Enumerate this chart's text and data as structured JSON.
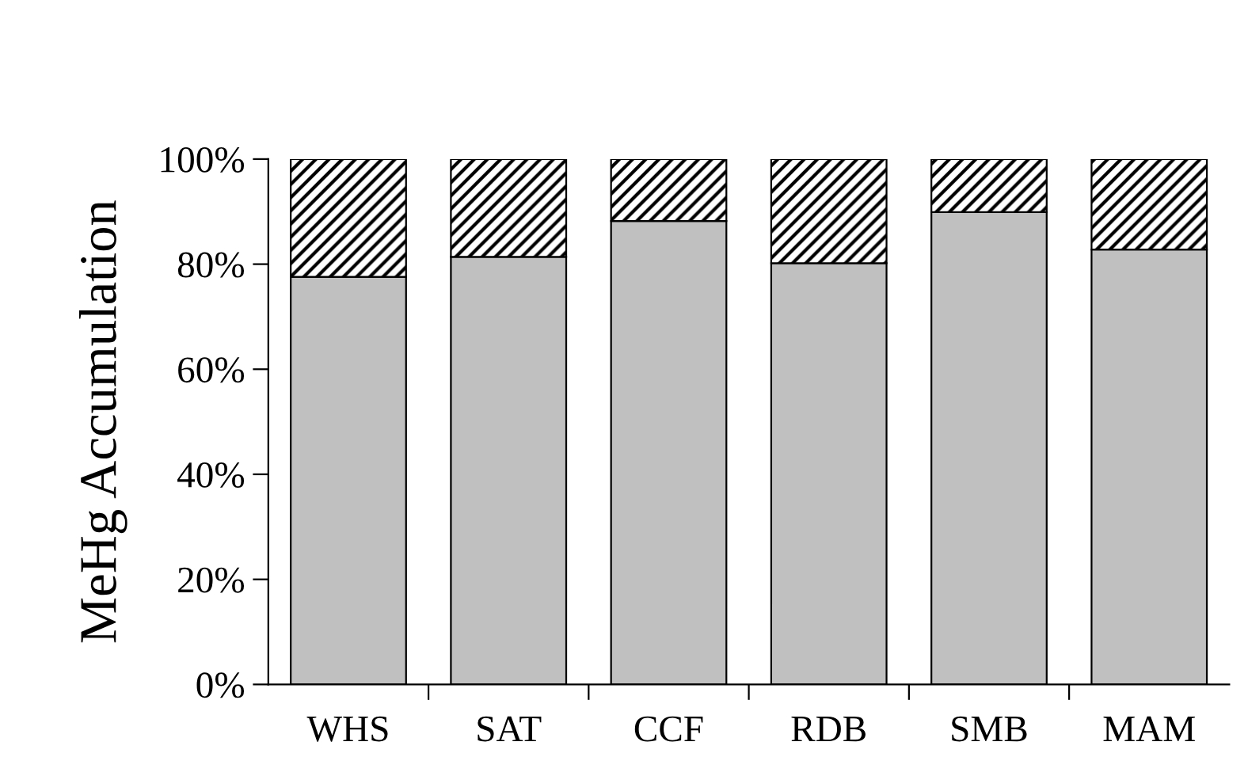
{
  "chart_data": {
    "type": "bar",
    "stacked": true,
    "ylabel": "MeHg Accumulation",
    "categories": [
      "WHS",
      "SAT",
      "CCF",
      "RDB",
      "SMB",
      "MAM"
    ],
    "series": [
      {
        "color": "#c0c0c0",
        "values": [
          77.6,
          81.4,
          88.2,
          80.2,
          89.9,
          82.8
        ]
      },
      {
        "color": "#000000",
        "values": [
          22.4,
          18.6,
          11.8,
          19.8,
          10.1,
          17.2
        ]
      }
    ],
    "ylim": [
      0,
      100
    ],
    "yticks": [
      {
        "value": 0,
        "label": "0%"
      },
      {
        "value": 20,
        "label": "20%"
      },
      {
        "value": 40,
        "label": "40%"
      },
      {
        "value": 60,
        "label": "60%"
      },
      {
        "value": 80,
        "label": "80%"
      },
      {
        "value": 100,
        "label": "100%"
      }
    ],
    "grid": false,
    "legend": false
  }
}
